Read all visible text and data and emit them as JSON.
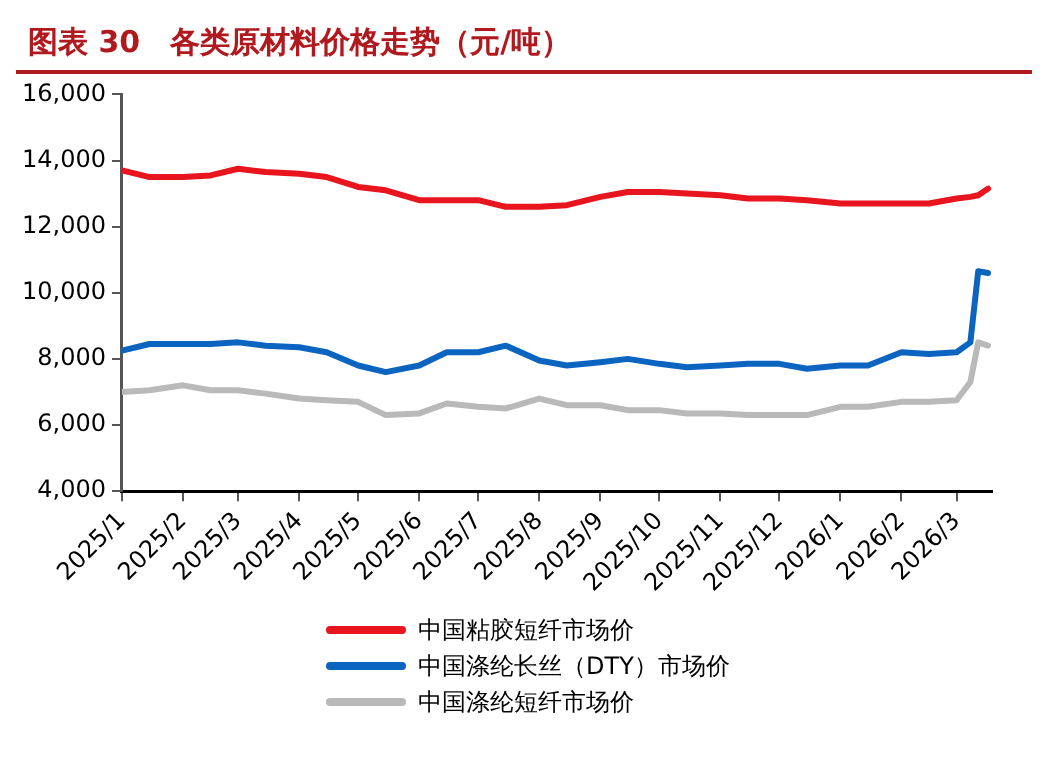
{
  "chart_data": {
    "type": "line",
    "title": "图表 30　各类原材料价格走势（元/吨）",
    "x": [
      "2025-01-01",
      "2025-01-15",
      "2025-02-01",
      "2025-02-15",
      "2025-03-01",
      "2025-03-15",
      "2025-04-01",
      "2025-04-15",
      "2025-05-01",
      "2025-05-15",
      "2025-06-01",
      "2025-06-15",
      "2025-07-01",
      "2025-07-15",
      "2025-08-01",
      "2025-08-15",
      "2025-09-01",
      "2025-09-15",
      "2025-10-01",
      "2025-10-15",
      "2025-11-01",
      "2025-11-15",
      "2025-12-01",
      "2025-12-15",
      "2026-01-01",
      "2026-01-15",
      "2026-02-01",
      "2026-02-15",
      "2026-03-01",
      "2026-03-08",
      "2026-03-12",
      "2026-03-17"
    ],
    "series": [
      {
        "name": "中国粘胶短纤市场价",
        "color": "#e8141e",
        "values": [
          13700,
          13500,
          13500,
          13550,
          13750,
          13650,
          13600,
          13500,
          13200,
          13100,
          12800,
          12800,
          12800,
          12600,
          12600,
          12650,
          12900,
          13050,
          13050,
          13000,
          12950,
          12850,
          12850,
          12800,
          12700,
          12700,
          12700,
          12700,
          12850,
          12900,
          12950,
          13150
        ]
      },
      {
        "name": "中国涤纶长丝（DTY）市场价",
        "color": "#0a64c0",
        "values": [
          8250,
          8450,
          8450,
          8450,
          8500,
          8400,
          8350,
          8200,
          7800,
          7600,
          7800,
          8200,
          8200,
          8400,
          7950,
          7800,
          7900,
          8000,
          7850,
          7750,
          7800,
          7850,
          7850,
          7700,
          7800,
          7800,
          8200,
          8150,
          8200,
          8500,
          10650,
          10600
        ]
      },
      {
        "name": "中国涤纶短纤市场价",
        "color": "#b9b9b9",
        "values": [
          7000,
          7050,
          7200,
          7050,
          7050,
          6950,
          6800,
          6750,
          6700,
          6300,
          6350,
          6650,
          6550,
          6500,
          6800,
          6600,
          6600,
          6450,
          6450,
          6350,
          6350,
          6300,
          6300,
          6300,
          6550,
          6550,
          6700,
          6700,
          6750,
          7300,
          8500,
          8400
        ]
      }
    ],
    "xlim": [
      "2025-01-01",
      "2026-03-19"
    ],
    "xticks": [
      {
        "value": "2025-01",
        "label": "2025/1"
      },
      {
        "value": "2025-02",
        "label": "2025/2"
      },
      {
        "value": "2025-03",
        "label": "2025/3"
      },
      {
        "value": "2025-04",
        "label": "2025/4"
      },
      {
        "value": "2025-05",
        "label": "2025/5"
      },
      {
        "value": "2025-06",
        "label": "2025/6"
      },
      {
        "value": "2025-07",
        "label": "2025/7"
      },
      {
        "value": "2025-08",
        "label": "2025/8"
      },
      {
        "value": "2025-09",
        "label": "2025/9"
      },
      {
        "value": "2025-10",
        "label": "2025/10"
      },
      {
        "value": "2025-11",
        "label": "2025/11"
      },
      {
        "value": "2025-12",
        "label": "2025/12"
      },
      {
        "value": "2026-01",
        "label": "2026/1"
      },
      {
        "value": "2026-02",
        "label": "2026/2"
      },
      {
        "value": "2026-03",
        "label": "2026/3"
      }
    ],
    "ylim": [
      4000,
      16000
    ],
    "yticks": [
      {
        "value": 4000,
        "label": "4,000"
      },
      {
        "value": 6000,
        "label": "6,000"
      },
      {
        "value": 8000,
        "label": "8,000"
      },
      {
        "value": 10000,
        "label": "10,000"
      },
      {
        "value": 12000,
        "label": "12,000"
      },
      {
        "value": 14000,
        "label": "14,000"
      },
      {
        "value": 16000,
        "label": "16,000"
      }
    ],
    "grid": false,
    "legend": "bottom",
    "marker": "none",
    "line_style": "solid"
  }
}
